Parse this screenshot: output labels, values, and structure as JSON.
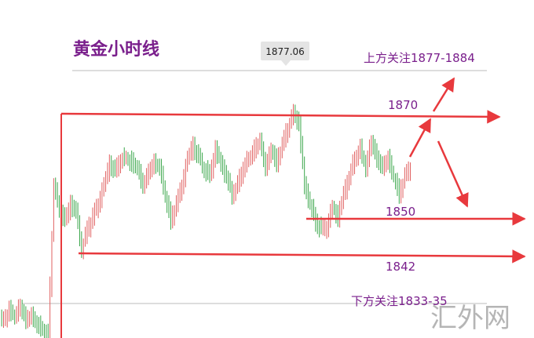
{
  "title": "黄金小时线",
  "watermark": "汇外网",
  "colors": {
    "up": "#e06060",
    "down": "#3aa64a",
    "levels": "#e8393d",
    "annotation": "#7a1f8c",
    "reference": "#bbbbbb",
    "highlight_bg": "#e4e4e4"
  },
  "chart_data": {
    "type": "candlestick",
    "title": "黄金小时线",
    "high_label": "1877.06",
    "resistance_note": "上方关注1877-1884",
    "support_note": "下方关注1833-35",
    "levels": [
      {
        "value": 1870,
        "label": "1870"
      },
      {
        "value": 1850,
        "label": "1850"
      },
      {
        "value": 1842,
        "label": "1842"
      }
    ],
    "ylim": [
      1826,
      1886
    ],
    "closes": [
      1830,
      1832,
      1831,
      1833,
      1830,
      1831,
      1829,
      1828,
      1826,
      1860,
      1855,
      1852,
      1856,
      1854,
      1846,
      1850,
      1853,
      1856,
      1860,
      1865,
      1863,
      1866,
      1866,
      1865,
      1864,
      1860,
      1863,
      1865,
      1864,
      1858,
      1852,
      1856,
      1860,
      1866,
      1869,
      1866,
      1864,
      1862,
      1868,
      1865,
      1862,
      1858,
      1860,
      1864,
      1866,
      1868,
      1870,
      1864,
      1868,
      1865,
      1869,
      1873,
      1876,
      1874,
      1860,
      1856,
      1852,
      1850,
      1851,
      1855,
      1853,
      1858,
      1862,
      1866,
      1868,
      1864,
      1870,
      1866,
      1864,
      1866,
      1862,
      1858,
      1862,
      1864
    ]
  }
}
